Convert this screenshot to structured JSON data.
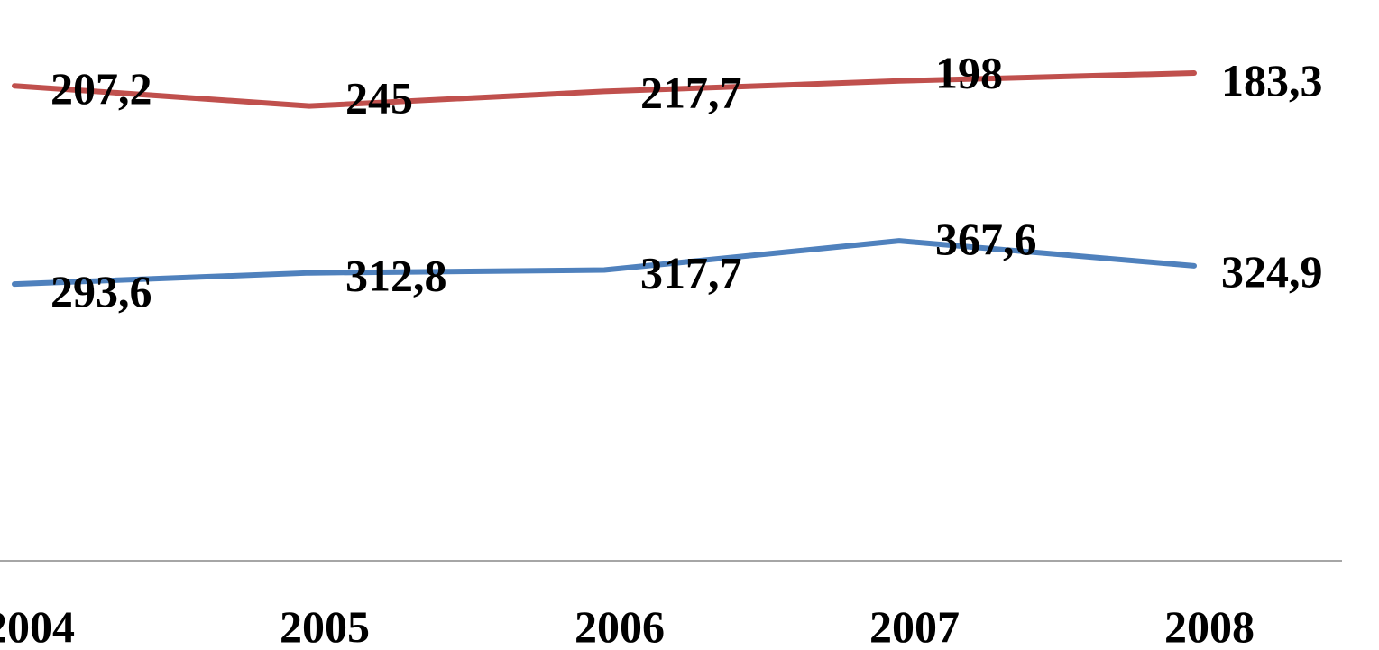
{
  "chart_data": {
    "type": "line",
    "categories": [
      "2004",
      "2005",
      "2006",
      "2007",
      "2008"
    ],
    "series": [
      {
        "values": [
          207.2,
          245,
          217.7,
          198,
          183.3
        ],
        "data_labels": [
          "207,2",
          "245",
          "217,7",
          "198",
          "183,3"
        ],
        "color": "#c0504d"
      },
      {
        "values": [
          293.6,
          312.8,
          317.7,
          367.6,
          324.9
        ],
        "data_labels": [
          "293,6",
          "312,8",
          "317,7",
          "367,6",
          "324,9"
        ],
        "color": "#4f81bd"
      }
    ],
    "axis_color": "#a6a6a6",
    "grid": false,
    "legend": "none"
  }
}
